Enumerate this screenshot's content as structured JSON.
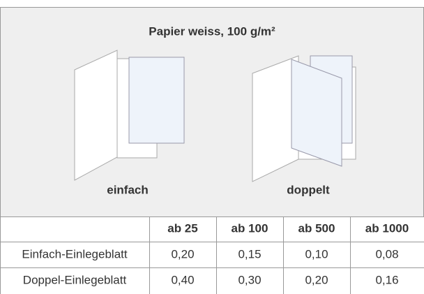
{
  "panel": {
    "title": "Papier weiss, 100 g/m²",
    "options": [
      {
        "label": "einfach"
      },
      {
        "label": "doppelt"
      }
    ]
  },
  "table": {
    "header": [
      "ab 25",
      "ab 100",
      "ab 500",
      "ab 1000"
    ],
    "rows": [
      [
        "Einfach-Einlegeblatt",
        "0,20",
        "0,15",
        "0,10",
        "0,08"
      ],
      [
        "Doppel-Einlegeblatt",
        "0,40",
        "0,30",
        "0,20",
        "0,16"
      ]
    ]
  }
}
